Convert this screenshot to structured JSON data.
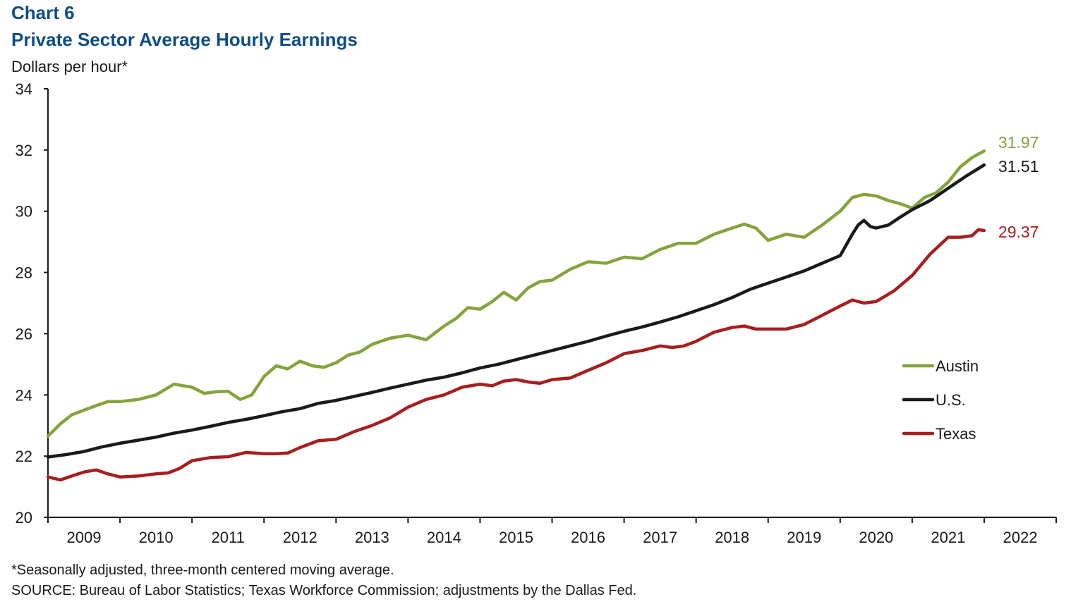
{
  "chart_data": {
    "type": "line",
    "title": "Chart 6",
    "subtitle": "Private Sector Average Hourly Earnings",
    "ylabel": "Dollars per hour*",
    "xlabel": "",
    "ylim": [
      20,
      34
    ],
    "yticks": [
      20,
      22,
      24,
      26,
      28,
      30,
      32,
      34
    ],
    "xlim": [
      2009.0,
      2023.0
    ],
    "xtick_labels": [
      "2009",
      "2010",
      "2011",
      "2012",
      "2013",
      "2014",
      "2015",
      "2016",
      "2017",
      "2018",
      "2019",
      "2020",
      "2021",
      "2022"
    ],
    "grid": false,
    "legend_position": "right",
    "series": [
      {
        "name": "Austin",
        "color": "#86a33c",
        "end_label": "31.97",
        "x": [
          2009.0,
          2009.17,
          2009.33,
          2009.5,
          2009.67,
          2009.83,
          2010.0,
          2010.25,
          2010.5,
          2010.75,
          2011.0,
          2011.17,
          2011.33,
          2011.5,
          2011.67,
          2011.83,
          2012.0,
          2012.17,
          2012.33,
          2012.5,
          2012.67,
          2012.83,
          2013.0,
          2013.17,
          2013.33,
          2013.5,
          2013.75,
          2014.0,
          2014.25,
          2014.5,
          2014.67,
          2014.83,
          2015.0,
          2015.17,
          2015.33,
          2015.5,
          2015.67,
          2015.83,
          2016.0,
          2016.25,
          2016.5,
          2016.75,
          2017.0,
          2017.25,
          2017.5,
          2017.75,
          2018.0,
          2018.25,
          2018.5,
          2018.67,
          2018.83,
          2019.0,
          2019.25,
          2019.5,
          2019.75,
          2020.0,
          2020.17,
          2020.33,
          2020.5,
          2020.67,
          2020.83,
          2021.0,
          2021.17,
          2021.33,
          2021.5,
          2021.67,
          2021.83,
          2022.0
        ],
        "values": [
          22.65,
          23.05,
          23.35,
          23.5,
          23.65,
          23.78,
          23.78,
          23.85,
          24.0,
          24.35,
          24.25,
          24.05,
          24.1,
          24.12,
          23.85,
          24.0,
          24.6,
          24.95,
          24.85,
          25.1,
          24.95,
          24.9,
          25.05,
          25.3,
          25.4,
          25.65,
          25.85,
          25.95,
          25.8,
          26.25,
          26.5,
          26.85,
          26.8,
          27.05,
          27.35,
          27.1,
          27.5,
          27.7,
          27.75,
          28.1,
          28.35,
          28.3,
          28.5,
          28.45,
          28.75,
          28.95,
          28.95,
          29.25,
          29.45,
          29.58,
          29.45,
          29.05,
          29.25,
          29.15,
          29.55,
          30.0,
          30.45,
          30.55,
          30.5,
          30.35,
          30.25,
          30.1,
          30.45,
          30.6,
          30.95,
          31.45,
          31.75,
          31.97
        ]
      },
      {
        "name": "U.S.",
        "color": "#1a1a1a",
        "end_label": "31.51",
        "x": [
          2009.0,
          2009.25,
          2009.5,
          2009.75,
          2010.0,
          2010.25,
          2010.5,
          2010.75,
          2011.0,
          2011.25,
          2011.5,
          2011.75,
          2012.0,
          2012.25,
          2012.5,
          2012.75,
          2013.0,
          2013.25,
          2013.5,
          2013.75,
          2014.0,
          2014.25,
          2014.5,
          2014.75,
          2015.0,
          2015.25,
          2015.5,
          2015.75,
          2016.0,
          2016.25,
          2016.5,
          2016.75,
          2017.0,
          2017.25,
          2017.5,
          2017.75,
          2018.0,
          2018.25,
          2018.5,
          2018.75,
          2019.0,
          2019.25,
          2019.5,
          2019.75,
          2020.0,
          2020.17,
          2020.25,
          2020.33,
          2020.42,
          2020.5,
          2020.67,
          2020.83,
          2021.0,
          2021.25,
          2021.5,
          2021.75,
          2022.0
        ],
        "values": [
          21.97,
          22.05,
          22.15,
          22.3,
          22.42,
          22.52,
          22.62,
          22.75,
          22.85,
          22.97,
          23.1,
          23.2,
          23.32,
          23.45,
          23.55,
          23.72,
          23.82,
          23.95,
          24.08,
          24.22,
          24.35,
          24.48,
          24.58,
          24.72,
          24.88,
          25.0,
          25.15,
          25.3,
          25.45,
          25.6,
          25.75,
          25.92,
          26.08,
          26.22,
          26.38,
          26.55,
          26.75,
          26.95,
          27.18,
          27.45,
          27.65,
          27.85,
          28.05,
          28.3,
          28.55,
          29.25,
          29.55,
          29.7,
          29.5,
          29.45,
          29.55,
          29.8,
          30.05,
          30.35,
          30.75,
          31.15,
          31.51
        ]
      },
      {
        "name": "Texas",
        "color": "#a81e1e",
        "end_label": "29.37",
        "x": [
          2009.0,
          2009.17,
          2009.33,
          2009.5,
          2009.67,
          2009.83,
          2010.0,
          2010.25,
          2010.5,
          2010.67,
          2010.83,
          2011.0,
          2011.25,
          2011.5,
          2011.75,
          2012.0,
          2012.17,
          2012.33,
          2012.5,
          2012.75,
          2013.0,
          2013.25,
          2013.5,
          2013.75,
          2014.0,
          2014.25,
          2014.5,
          2014.75,
          2015.0,
          2015.17,
          2015.33,
          2015.5,
          2015.67,
          2015.83,
          2016.0,
          2016.25,
          2016.5,
          2016.75,
          2017.0,
          2017.25,
          2017.5,
          2017.67,
          2017.83,
          2018.0,
          2018.25,
          2018.5,
          2018.67,
          2018.83,
          2019.0,
          2019.25,
          2019.5,
          2019.75,
          2020.0,
          2020.17,
          2020.33,
          2020.5,
          2020.75,
          2021.0,
          2021.25,
          2021.5,
          2021.67,
          2021.83,
          2021.92,
          2022.0
        ],
        "values": [
          21.32,
          21.22,
          21.35,
          21.48,
          21.55,
          21.42,
          21.32,
          21.35,
          21.42,
          21.45,
          21.6,
          21.85,
          21.95,
          21.98,
          22.12,
          22.08,
          22.08,
          22.1,
          22.28,
          22.5,
          22.55,
          22.8,
          23.0,
          23.25,
          23.6,
          23.85,
          24.0,
          24.25,
          24.35,
          24.3,
          24.45,
          24.5,
          24.42,
          24.38,
          24.5,
          24.55,
          24.8,
          25.05,
          25.35,
          25.45,
          25.6,
          25.55,
          25.6,
          25.75,
          26.05,
          26.2,
          26.25,
          26.15,
          26.15,
          26.15,
          26.3,
          26.6,
          26.9,
          27.1,
          27.0,
          27.05,
          27.4,
          27.9,
          28.6,
          29.15,
          29.15,
          29.2,
          29.4,
          29.37
        ]
      }
    ]
  },
  "footnotes": {
    "note": "*Seasonally adjusted, three-month centered moving average.",
    "source": "SOURCE: Bureau of Labor Statistics; Texas  Workforce Commission; adjustments by the Dallas Fed."
  }
}
